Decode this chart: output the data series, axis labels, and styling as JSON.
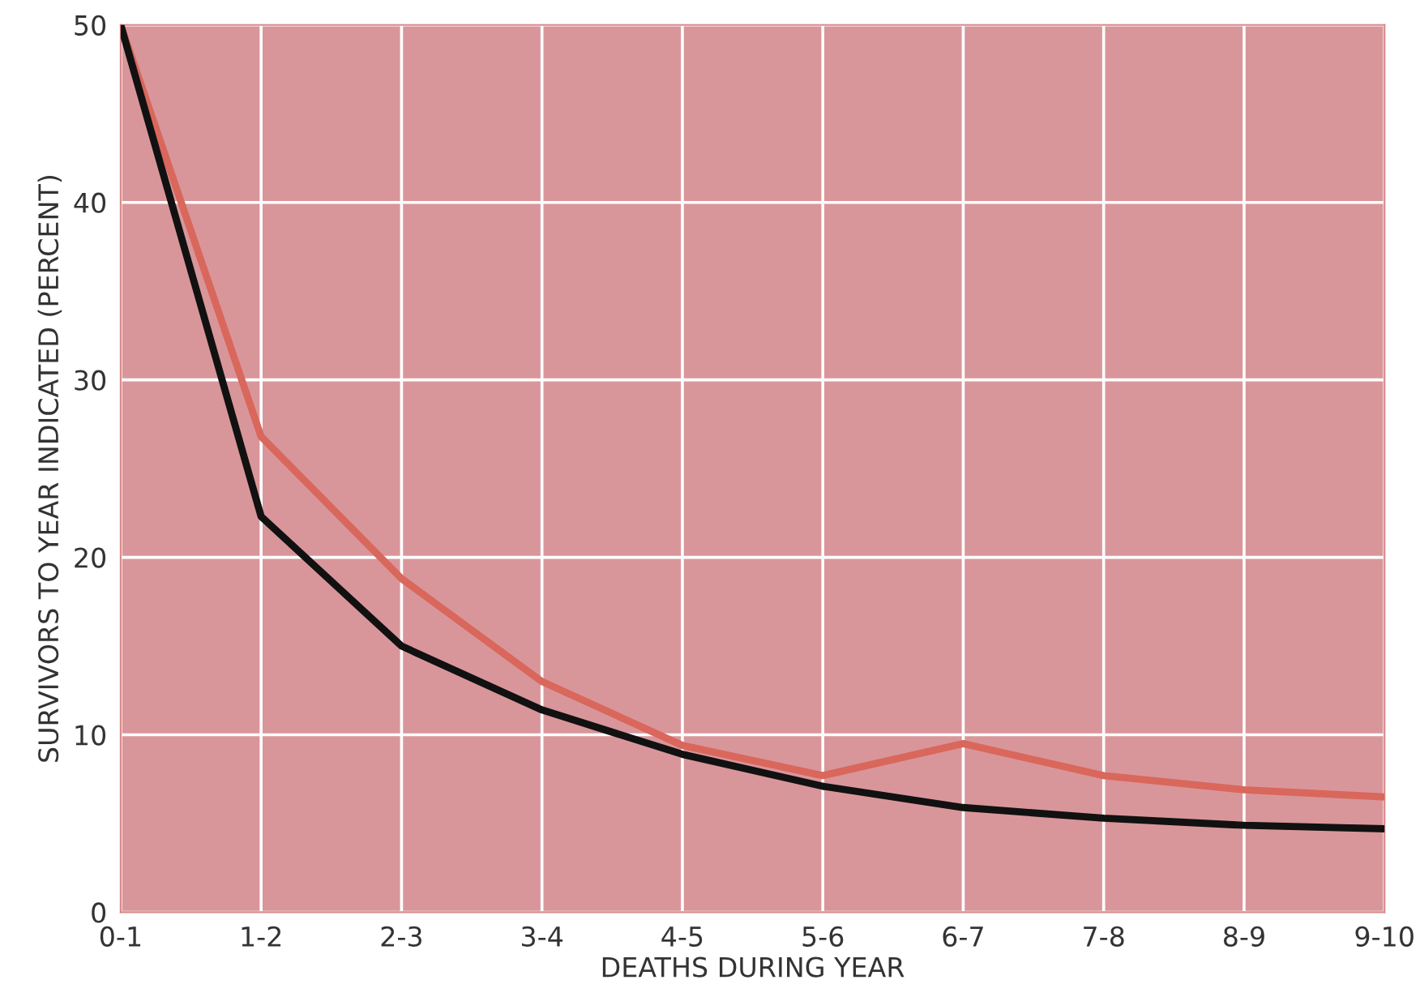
{
  "chart_data": {
    "type": "line",
    "xlabel": "DEATHS DURING YEAR",
    "ylabel": "SURVIVORS TO YEAR INDICATED (PERCENT)",
    "categories": [
      "0-1",
      "1-2",
      "2-3",
      "3-4",
      "4-5",
      "5-6",
      "6-7",
      "7-8",
      "8-9",
      "9-10"
    ],
    "ylim": [
      0,
      50
    ],
    "yticks": [
      0,
      10,
      20,
      30,
      40,
      50
    ],
    "grid": true,
    "line_style": "solid",
    "series": [
      {
        "color": "#d9675c",
        "values": [
          50,
          26.8,
          18.8,
          13,
          9.4,
          7.7,
          9.5,
          7.7,
          6.9,
          6.5
        ]
      },
      {
        "color": "#111111",
        "values": [
          50,
          22.3,
          15,
          11.4,
          8.9,
          7.1,
          5.9,
          5.3,
          4.9,
          4.7
        ]
      }
    ]
  }
}
